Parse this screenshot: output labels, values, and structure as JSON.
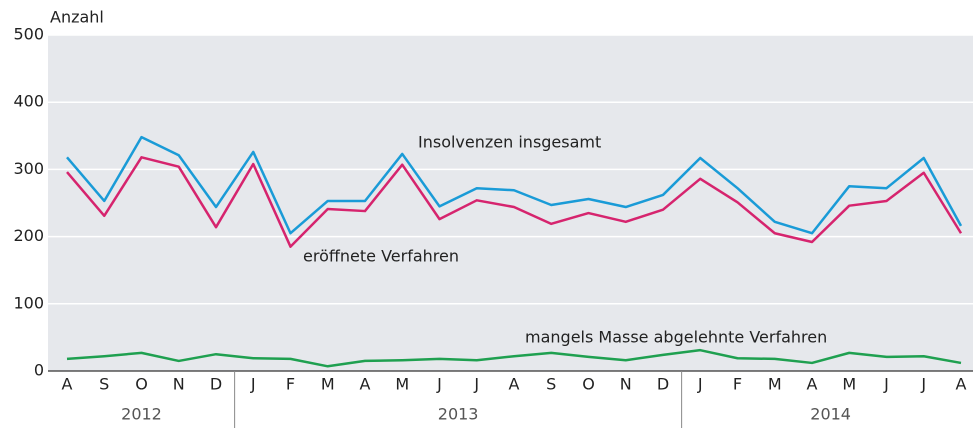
{
  "chart_data": {
    "type": "line",
    "y_axis_label": "Anzahl",
    "categories": [
      "A",
      "S",
      "O",
      "N",
      "D",
      "J",
      "F",
      "M",
      "A",
      "M",
      "J",
      "J",
      "A",
      "S",
      "O",
      "N",
      "D",
      "J",
      "F",
      "M",
      "A",
      "M",
      "J",
      "J",
      "A"
    ],
    "year_groups": [
      {
        "label": "2012",
        "months": 5
      },
      {
        "label": "2013",
        "months": 12
      },
      {
        "label": "2014",
        "months": 8
      }
    ],
    "ylim": [
      0,
      500
    ],
    "yticks": [
      0,
      100,
      200,
      300,
      400,
      500
    ],
    "grid": true,
    "series": [
      {
        "name": "Insolvenzen insgesamt",
        "color": "#1a9bd7",
        "values": [
          318,
          253,
          348,
          321,
          244,
          326,
          205,
          253,
          253,
          323,
          245,
          272,
          269,
          247,
          256,
          244,
          262,
          317,
          272,
          222,
          205,
          275,
          272,
          317,
          216
        ]
      },
      {
        "name": "eröffnete Verfahren",
        "color": "#d6246e",
        "values": [
          296,
          231,
          318,
          304,
          214,
          308,
          185,
          241,
          238,
          307,
          226,
          254,
          244,
          219,
          235,
          222,
          240,
          286,
          251,
          205,
          192,
          246,
          253,
          295,
          205
        ]
      },
      {
        "name": "mangels Masse abgelehnte Verfahren",
        "color": "#1fa050",
        "values": [
          18,
          22,
          27,
          15,
          25,
          19,
          18,
          7,
          15,
          16,
          18,
          16,
          22,
          27,
          21,
          16,
          24,
          31,
          19,
          18,
          12,
          27,
          21,
          22,
          12
        ]
      }
    ]
  }
}
